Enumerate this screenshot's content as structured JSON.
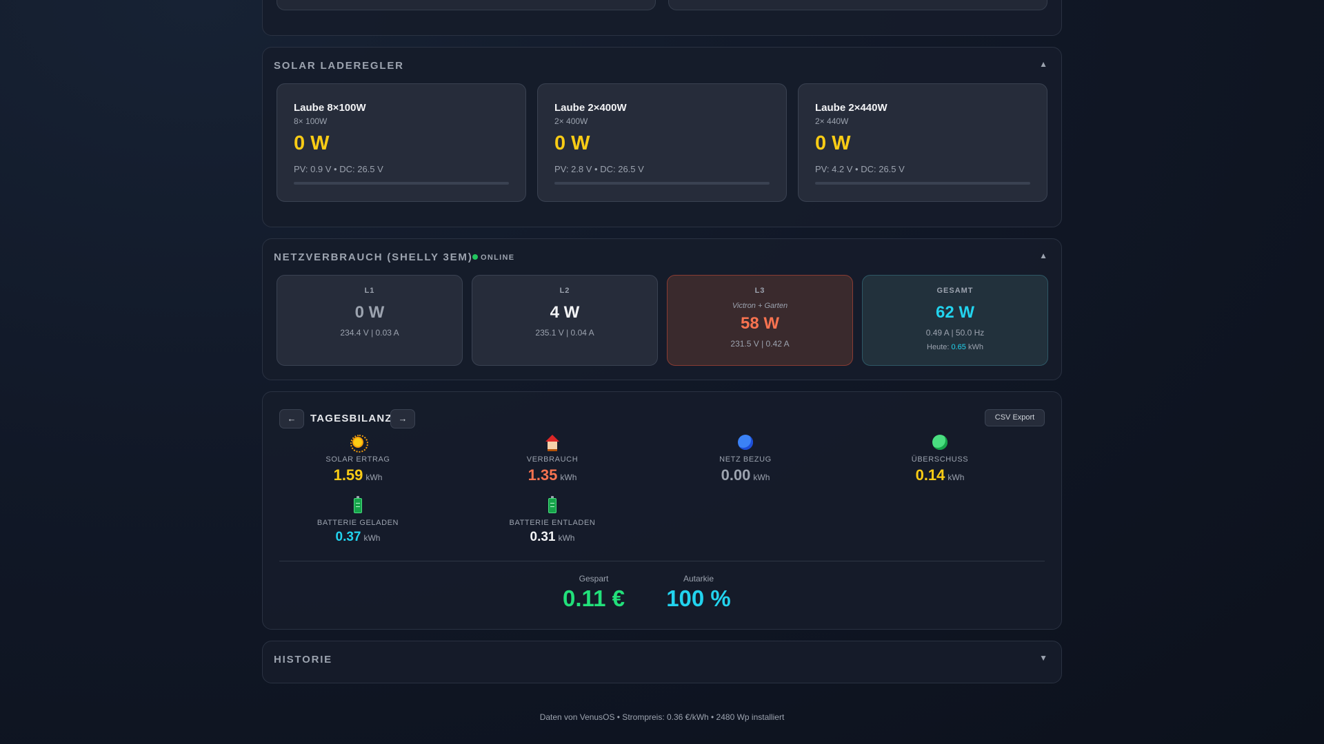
{
  "solar": {
    "title": "SOLAR LADEREGLER",
    "toggle": "▲",
    "chargers": [
      {
        "name": "Laube 8×100W",
        "sub": "8× 100W",
        "power": "0 W",
        "detail": "PV: 0.9 V • DC: 26.5 V",
        "load_percent": 0
      },
      {
        "name": "Laube 2×400W",
        "sub": "2× 400W",
        "power": "0 W",
        "detail": "PV: 2.8 V • DC: 26.5 V",
        "load_percent": 0
      },
      {
        "name": "Laube 2×440W",
        "sub": "2× 440W",
        "power": "0 W",
        "detail": "PV: 4.2 V • DC: 26.5 V",
        "load_percent": 0
      }
    ]
  },
  "grid": {
    "title": "NETZVERBRAUCH (SHELLY 3EM)",
    "status": "ONLINE",
    "toggle": "▲",
    "phases": [
      {
        "label": "L1",
        "hint": "",
        "power": "0 W",
        "detail": "234.4 V | 0.03 A",
        "color": "#9ca3af"
      },
      {
        "label": "L2",
        "hint": "",
        "power": "4 W",
        "detail": "235.1 V | 0.04 A",
        "color": "#f3f4f6"
      },
      {
        "label": "L3",
        "hint": "Victron + Garten",
        "power": "58 W",
        "detail": "231.5 V | 0.42 A",
        "color": "#f97350"
      }
    ],
    "total": {
      "label": "GESAMT",
      "power": "62 W",
      "detail": "0.49 A | 50.0 Hz",
      "today_label": "Heute:",
      "today_value": "0.65",
      "today_unit": "kWh",
      "color": "#22d3ee"
    }
  },
  "balance": {
    "prev": "←",
    "next": "→",
    "title": "TAGESBILANZ",
    "csv": "CSV Export",
    "stats": [
      {
        "icon": "sun-icon",
        "label": "SOLAR ERTRAG",
        "value": "1.59",
        "unit": "kWh",
        "color": "#facc15"
      },
      {
        "icon": "house-icon",
        "label": "VERBRAUCH",
        "value": "1.35",
        "unit": "kWh",
        "color": "#f97350"
      },
      {
        "icon": "blue-circle-icon",
        "label": "NETZ BEZUG",
        "value": "0.00",
        "unit": "kWh",
        "color": "#9ca3af"
      },
      {
        "icon": "green-circle-icon",
        "label": "ÜBERSCHUSS",
        "value": "0.14",
        "unit": "kWh",
        "color": "#facc15"
      },
      {
        "icon": "battery-icon",
        "label": "BATTERIE GELADEN",
        "value": "0.37",
        "unit": "kWh",
        "color": "#22d3ee"
      },
      {
        "icon": "battery-icon",
        "label": "BATTERIE ENTLADEN",
        "value": "0.31",
        "unit": "kWh",
        "color": "#f3f4f6"
      }
    ],
    "saved": {
      "label": "Gespart",
      "value": "0.11 €",
      "color": "#22e07a"
    },
    "autarky": {
      "label": "Autarkie",
      "value": "100 %",
      "color": "#22d3ee"
    }
  },
  "history": {
    "title": "HISTORIE",
    "toggle": "▼"
  },
  "footer": "Daten von VenusOS • Strompreis: 0.36 €/kWh • 2480 Wp installiert"
}
